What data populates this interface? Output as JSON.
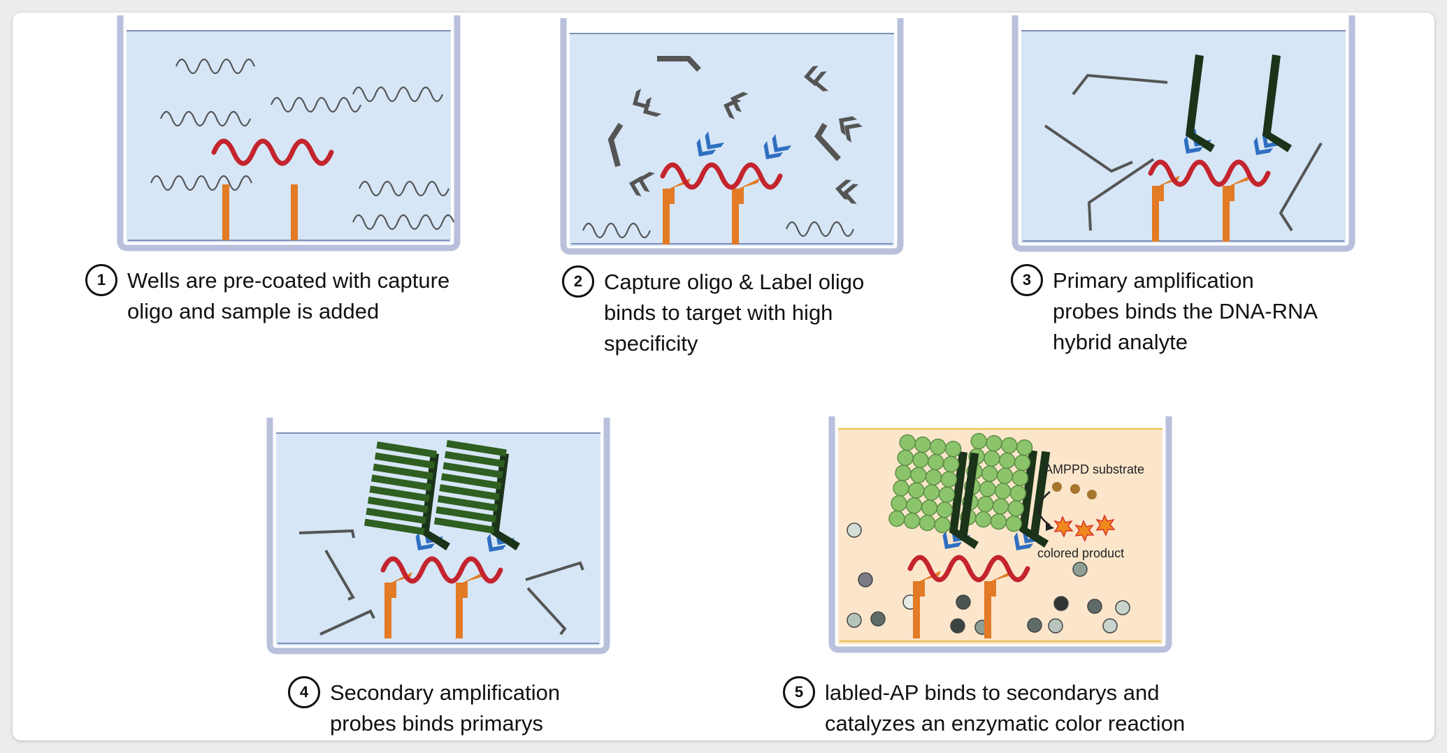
{
  "steps": [
    {
      "number": "1",
      "lines": [
        "Wells are pre-coated with capture",
        "oligo and sample is added"
      ]
    },
    {
      "number": "2",
      "lines": [
        "Capture oligo & Label oligo",
        "binds to target with high",
        "specificity"
      ]
    },
    {
      "number": "3",
      "lines": [
        "Primary amplification",
        "probes binds the DNA-RNA",
        "hybrid analyte"
      ]
    },
    {
      "number": "4",
      "lines": [
        "Secondary amplification",
        "probes binds primarys"
      ]
    },
    {
      "number": "5",
      "lines": [
        "labled-AP binds to secondarys and",
        "catalyzes an enzymatic color reaction"
      ]
    }
  ],
  "well5_labels": {
    "substrate": "AMPPD substrate",
    "product": "colored product"
  },
  "colors": {
    "well_liquid": "#d6e6f6",
    "well_liquid_5": "#fbe6cc",
    "well_wall": "#b9c0dc",
    "target_rna": "#c4242d",
    "capture_oligo": "#e37a25",
    "label_oligo": "#2f6fc2",
    "primary_probe": "#1a3319",
    "secondary_probe": "#2f5f21",
    "ap_bead": "#8cc46b",
    "substrate_dot": "#a6752e",
    "product_star": "#f08a1c"
  }
}
